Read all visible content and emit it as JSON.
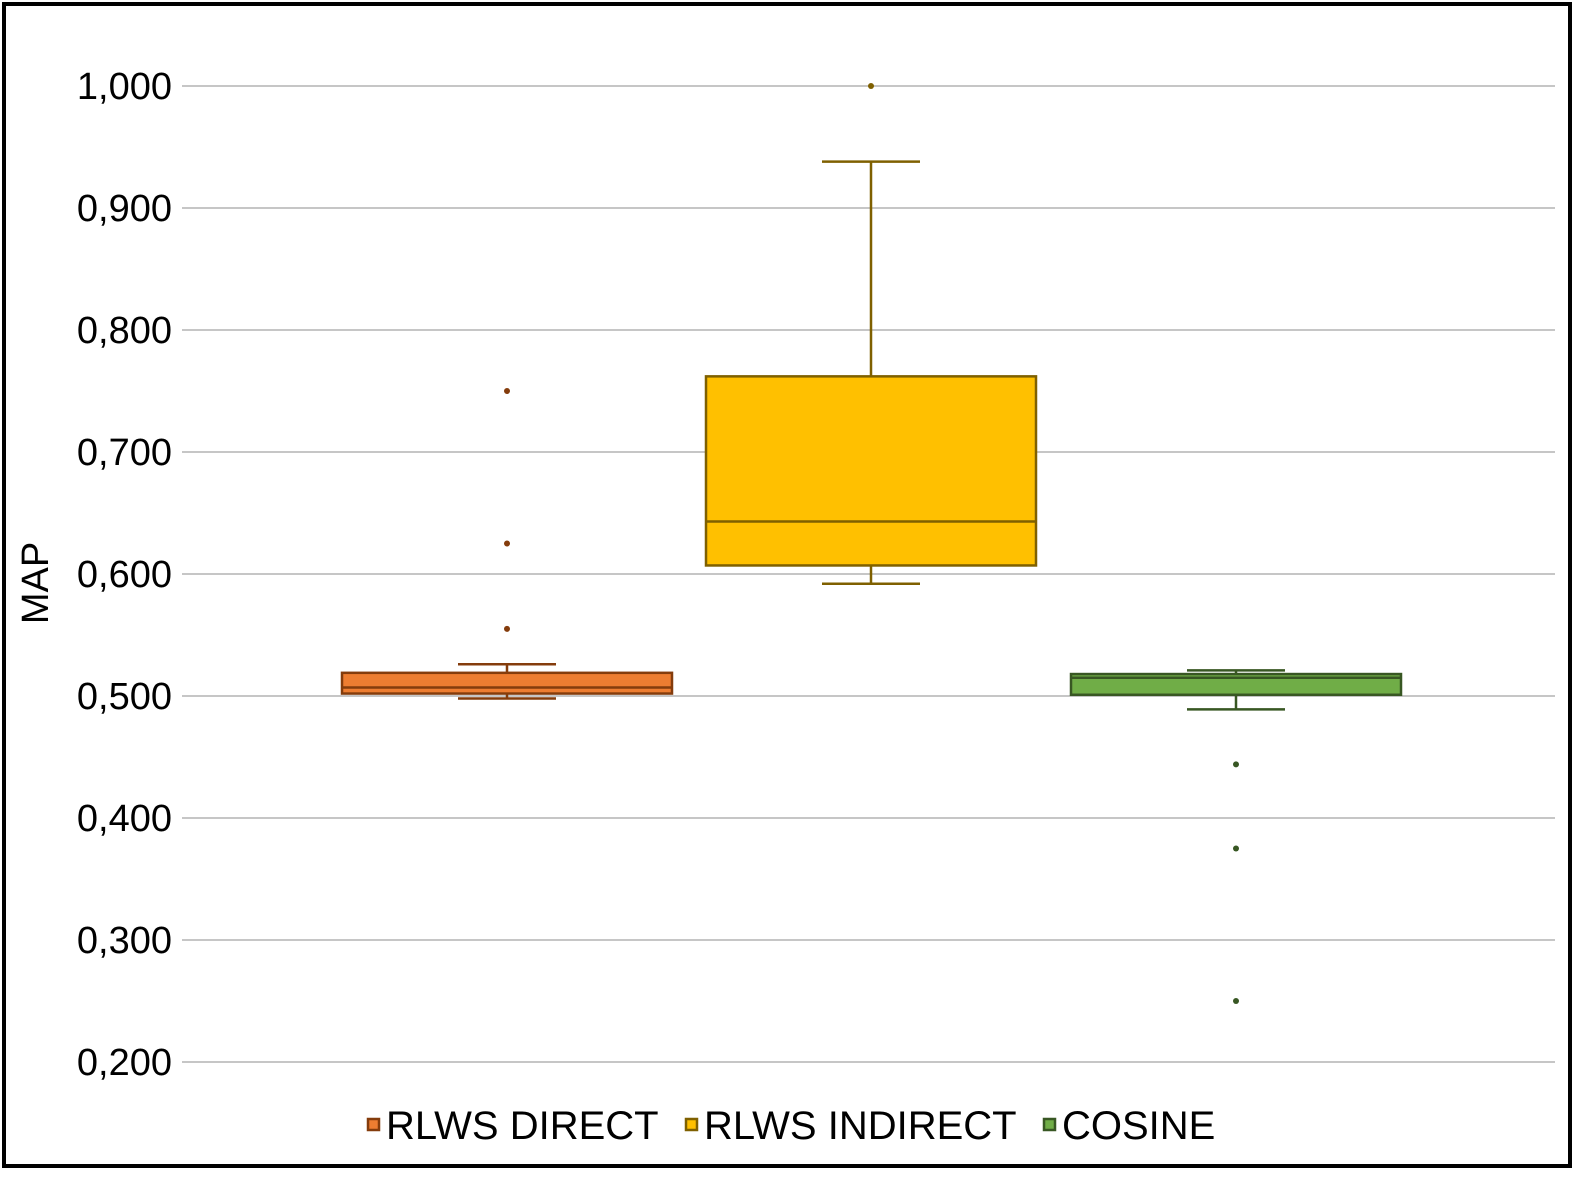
{
  "chart_data": {
    "type": "box",
    "title": "",
    "xlabel": "",
    "ylabel": "MAP",
    "ylim": [
      0.2,
      1.0
    ],
    "yticks": [
      0.2,
      0.3,
      0.4,
      0.5,
      0.6,
      0.7,
      0.8,
      0.9,
      1.0
    ],
    "ytick_labels": [
      "0,200",
      "0,300",
      "0,400",
      "0,500",
      "0,600",
      "0,700",
      "0,800",
      "0,900",
      "1,000"
    ],
    "grid": true,
    "legend_position": "bottom",
    "series": [
      {
        "name": "RLWS DIRECT",
        "fill": "#ED7D31",
        "stroke": "#843C0C",
        "whisker_low": 0.498,
        "q1": 0.502,
        "median": 0.507,
        "q3": 0.519,
        "whisker_high": 0.526,
        "outliers": [
          0.75,
          0.625,
          0.555
        ]
      },
      {
        "name": "RLWS INDIRECT",
        "fill": "#FFC000",
        "stroke": "#7F6000",
        "whisker_low": 0.592,
        "q1": 0.607,
        "median": 0.643,
        "q3": 0.762,
        "whisker_high": 0.938,
        "outliers": [
          1.0
        ]
      },
      {
        "name": "COSINE",
        "fill": "#70AD47",
        "stroke": "#385723",
        "whisker_low": 0.489,
        "q1": 0.501,
        "median": 0.515,
        "q3": 0.518,
        "whisker_high": 0.521,
        "outliers": [
          0.444,
          0.375,
          0.25
        ]
      }
    ]
  }
}
